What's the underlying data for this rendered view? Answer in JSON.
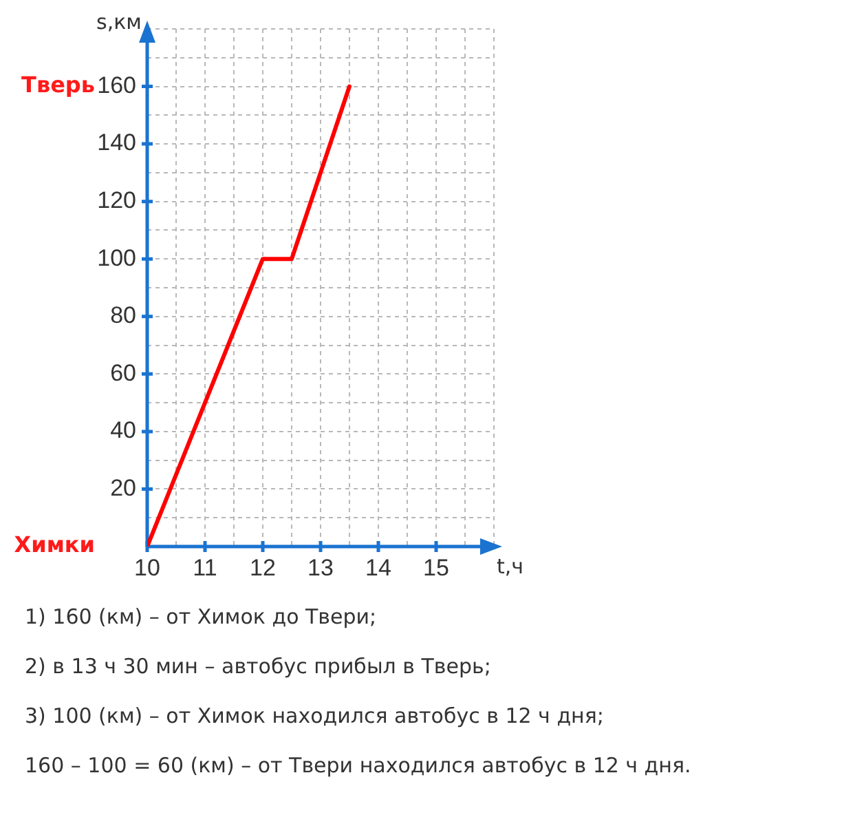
{
  "chart_data": {
    "type": "line",
    "xlabel": "t,ч",
    "ylabel": "s,км",
    "x": [
      10,
      12,
      12.5,
      13.5
    ],
    "series": [
      {
        "color": "#ff0000",
        "values": [
          0,
          100,
          100,
          160
        ]
      }
    ],
    "xlim": [
      10,
      16
    ],
    "ylim": [
      0,
      180
    ],
    "xticks": [
      10,
      {
        "value": 10.5,
        "label": null
      },
      11,
      {
        "value": 11.5,
        "label": null
      },
      12,
      {
        "value": 12.5,
        "label": null
      },
      13,
      {
        "value": 13.5,
        "label": null
      },
      14,
      {
        "value": 14.5,
        "label": null
      },
      15,
      {
        "value": 15.5,
        "label": null
      },
      {
        "value": 16,
        "label": null
      }
    ],
    "yticks": [
      {
        "value": 0,
        "label": null
      },
      {
        "value": 10,
        "label": null
      },
      20,
      {
        "value": 30,
        "label": null
      },
      40,
      {
        "value": 50,
        "label": null
      },
      60,
      {
        "value": 70,
        "label": null
      },
      80,
      {
        "value": 90,
        "label": null
      },
      100,
      {
        "value": 110,
        "label": null
      },
      120,
      {
        "value": 130,
        "label": null
      },
      140,
      {
        "value": 150,
        "label": null
      },
      160,
      {
        "value": 170,
        "label": null
      },
      {
        "value": 180,
        "label": null
      }
    ],
    "grid": true,
    "legend": false,
    "marker": "none",
    "line_style": "solid",
    "annotations": [
      "Тверь",
      "Химки",
      "1) 160 (км) – от Химок до Твери;",
      "2) в 13 ч 30 мин – автобус прибыл в Тверь;",
      "3) 100 (км) – от Химок находился автобус в 12 ч дня;",
      "160 – 100 = 60 (км) – от Твери находился автобус в 12 ч дня."
    ]
  }
}
